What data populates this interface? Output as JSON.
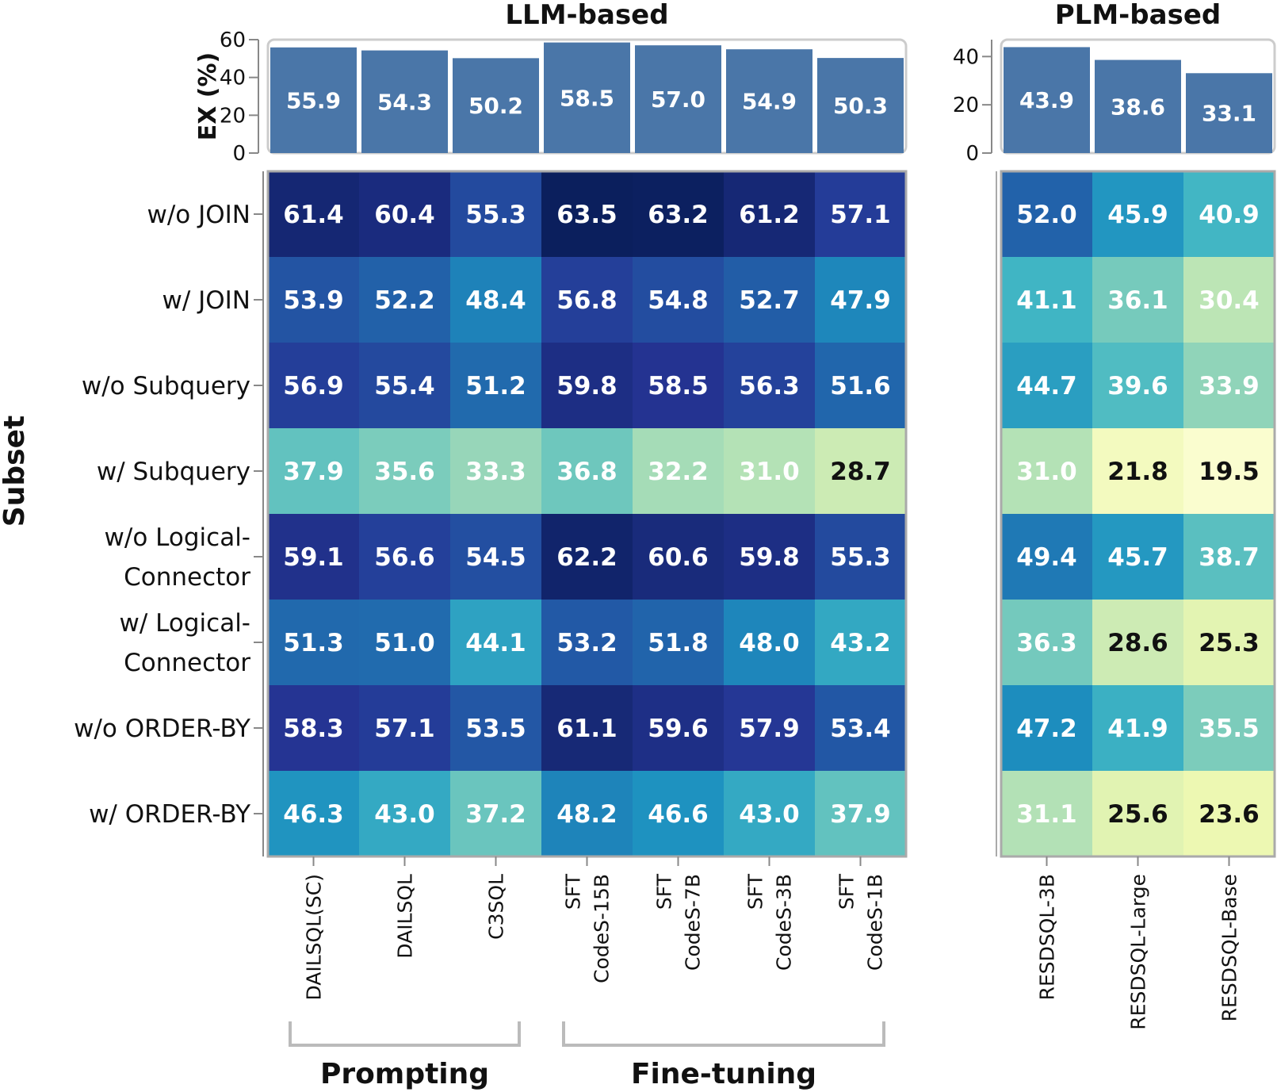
{
  "chart_data": {
    "type": "heatmap",
    "y_axis_title": "Subset",
    "bar_axis_title": "EX (%)",
    "rows": [
      "w/o JOIN",
      "w/ JOIN",
      "w/o Subquery",
      "w/ Subquery",
      "w/o Logical-Connector",
      "w/ Logical-Connector",
      "w/o ORDER-BY",
      "w/ ORDER-BY"
    ],
    "row_label_lines": [
      [
        "w/o JOIN"
      ],
      [
        "w/ JOIN"
      ],
      [
        "w/o Subquery"
      ],
      [
        "w/ Subquery"
      ],
      [
        "w/o Logical-",
        "Connector"
      ],
      [
        "w/ Logical-",
        "Connector"
      ],
      [
        "w/o ORDER-BY"
      ],
      [
        "w/ ORDER-BY"
      ]
    ],
    "panels": [
      {
        "title": "LLM-based",
        "y_ticks": [
          0,
          20,
          40,
          60
        ],
        "y_max": 60,
        "columns": [
          {
            "lines": [
              "DAILSQL(SC)"
            ]
          },
          {
            "lines": [
              "DAILSQL"
            ]
          },
          {
            "lines": [
              "C3SQL"
            ]
          },
          {
            "lines": [
              "SFT",
              "CodeS-15B"
            ]
          },
          {
            "lines": [
              "SFT",
              "CodeS-7B"
            ]
          },
          {
            "lines": [
              "SFT",
              "CodeS-3B"
            ]
          },
          {
            "lines": [
              "SFT",
              "CodeS-1B"
            ]
          }
        ],
        "bar_values": [
          55.9,
          54.3,
          50.2,
          58.5,
          57.0,
          54.9,
          50.3
        ],
        "bar_labels": [
          "55.9",
          "54.3",
          "50.2",
          "58.5",
          "57.0",
          "54.9",
          "50.3"
        ],
        "cells": [
          [
            "61.4",
            "60.4",
            "55.3",
            "63.5",
            "63.2",
            "61.2",
            "57.1"
          ],
          [
            "53.9",
            "52.2",
            "48.4",
            "56.8",
            "54.8",
            "52.7",
            "47.9"
          ],
          [
            "56.9",
            "55.4",
            "51.2",
            "59.8",
            "58.5",
            "56.3",
            "51.6"
          ],
          [
            "37.9",
            "35.6",
            "33.3",
            "36.8",
            "32.2",
            "31.0",
            "28.7"
          ],
          [
            "59.1",
            "56.6",
            "54.5",
            "62.2",
            "60.6",
            "59.8",
            "55.3"
          ],
          [
            "51.3",
            "51.0",
            "44.1",
            "53.2",
            "51.8",
            "48.0",
            "43.2"
          ],
          [
            "58.3",
            "57.1",
            "53.5",
            "61.1",
            "59.6",
            "57.9",
            "53.4"
          ],
          [
            "46.3",
            "43.0",
            "37.2",
            "48.2",
            "46.6",
            "43.0",
            "37.9"
          ]
        ],
        "groups": [
          {
            "label": "Prompting",
            "from": 0,
            "to": 2
          },
          {
            "label": "Fine-tuning",
            "from": 3,
            "to": 6
          }
        ]
      },
      {
        "title": "PLM-based",
        "y_ticks": [
          0,
          20,
          40
        ],
        "y_max": 47,
        "columns": [
          {
            "lines": [
              "RESDSQL-3B"
            ]
          },
          {
            "lines": [
              "RESDSQL-Large"
            ]
          },
          {
            "lines": [
              "RESDSQL-Base"
            ]
          }
        ],
        "bar_values": [
          43.9,
          38.6,
          33.1
        ],
        "bar_labels": [
          "43.9",
          "38.6",
          "33.1"
        ],
        "cells": [
          [
            "52.0",
            "45.9",
            "40.9"
          ],
          [
            "41.1",
            "36.1",
            "30.4"
          ],
          [
            "44.7",
            "39.6",
            "33.9"
          ],
          [
            "31.0",
            "21.8",
            "19.5"
          ],
          [
            "49.4",
            "45.7",
            "38.7"
          ],
          [
            "36.3",
            "28.6",
            "25.3"
          ],
          [
            "47.2",
            "41.9",
            "35.5"
          ],
          [
            "31.1",
            "25.6",
            "23.6"
          ]
        ],
        "groups": []
      }
    ],
    "color_scale": {
      "min": 18,
      "max": 64,
      "stops": [
        "#ffffd9",
        "#edf8b1",
        "#c7e9b4",
        "#7fcdbb",
        "#41b6c4",
        "#1d91c0",
        "#225ea8",
        "#253494",
        "#081d58"
      ],
      "bar_color": "#4a76a8",
      "dark_text_below": 30
    }
  }
}
